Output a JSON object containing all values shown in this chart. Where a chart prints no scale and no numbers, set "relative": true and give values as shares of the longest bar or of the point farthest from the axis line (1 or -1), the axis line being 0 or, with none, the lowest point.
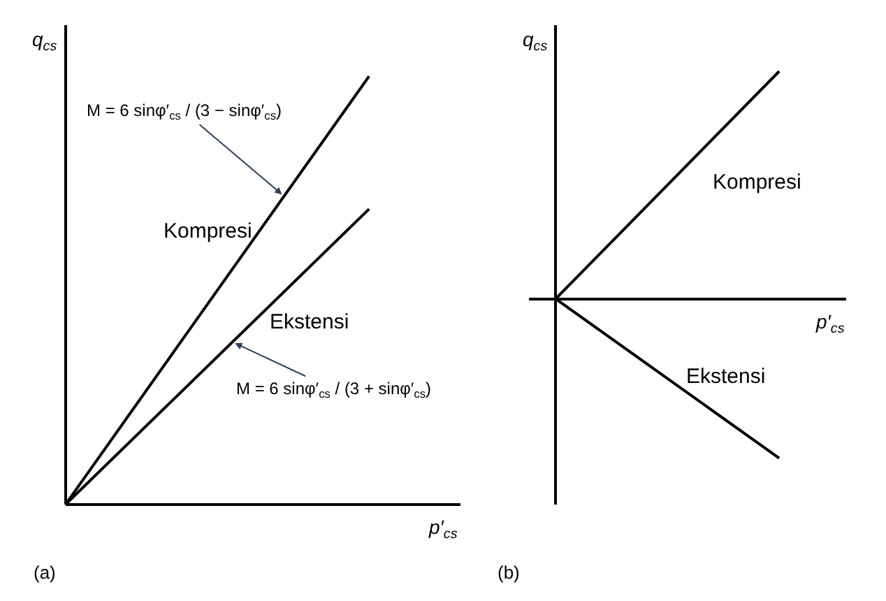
{
  "chart_data": [
    {
      "type": "line",
      "relative": true,
      "categories": [
        null,
        null
      ],
      "xlabel": "p′$_{cs}$",
      "ylabel": "q$_{cs}$",
      "tick_labels": false,
      "series": [
        {
          "name": "Kompresi",
          "color": "#000000",
          "values": [
            0,
            1
          ]
        },
        {
          "name": "Ekstensi",
          "color": "#000000",
          "values": [
            0,
            0.69
          ]
        }
      ],
      "annotations": [
        "M = 6 sinφ′$_{cs}$ / (3 − sinφ′$_{cs}$)",
        "M = 6 sinφ′$_{cs}$ / (3 + sinφ′$_{cs}$)",
        "(a)"
      ]
    },
    {
      "type": "line",
      "relative": true,
      "categories": [
        null,
        null
      ],
      "xlabel": "p′$_{cs}$",
      "ylabel": "q$_{cs}$",
      "tick_labels": false,
      "series": [
        {
          "name": "Kompresi",
          "color": "#000000",
          "values": [
            0,
            1
          ]
        },
        {
          "name": "Ekstensi",
          "color": "#000000",
          "values": [
            0,
            -0.7
          ]
        }
      ],
      "annotations": [
        "(b)"
      ]
    }
  ]
}
